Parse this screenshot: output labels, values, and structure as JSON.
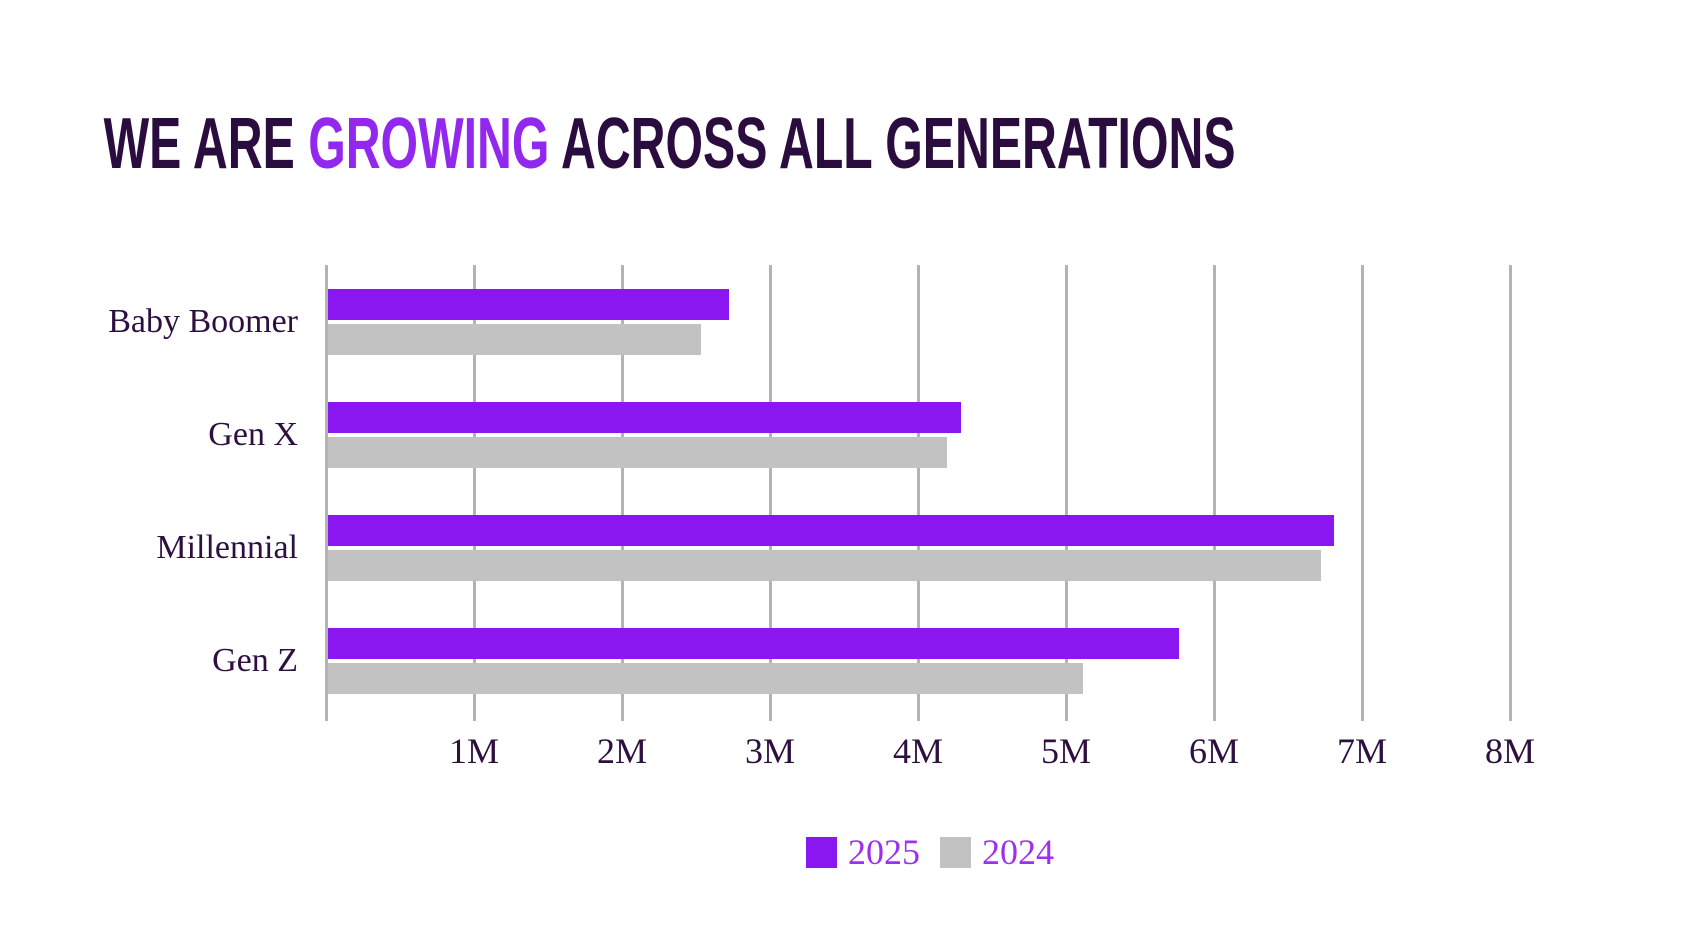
{
  "title": {
    "part1": "WE ARE ",
    "accent": "GROWING",
    "part2": " ACROSS ALL GENERATIONS"
  },
  "colors": {
    "title_dark": "#2B0C3E",
    "title_accent": "#9228ED",
    "bar_2025": "#8B17F0",
    "bar_2024": "#C2C2C2",
    "axis_text": "#2E1040",
    "legend_text": "#9C30F0",
    "gridline": "#B3B3B3",
    "background": "#FFFFFF"
  },
  "chart_data": {
    "type": "bar",
    "orientation": "horizontal",
    "title": "WE ARE GROWING ACROSS ALL GENERATIONS",
    "categories": [
      "Baby Boomer",
      "Gen X",
      "Millennial",
      "Gen Z"
    ],
    "series": [
      {
        "name": "2025",
        "color": "#8B17F0",
        "values": [
          2.71,
          4.28,
          6.8,
          5.75
        ]
      },
      {
        "name": "2024",
        "color": "#C2C2C2",
        "values": [
          2.52,
          4.18,
          6.71,
          5.1
        ]
      }
    ],
    "value_unit": "M",
    "x_ticks": [
      "1M",
      "2M",
      "3M",
      "4M",
      "5M",
      "6M",
      "7M",
      "8M"
    ],
    "xlim": [
      0,
      8.5
    ],
    "grid": true,
    "legend_position": "bottom"
  },
  "legend": {
    "items": [
      {
        "label": "2025",
        "color": "#8B17F0"
      },
      {
        "label": "2024",
        "color": "#C2C2C2"
      }
    ]
  }
}
